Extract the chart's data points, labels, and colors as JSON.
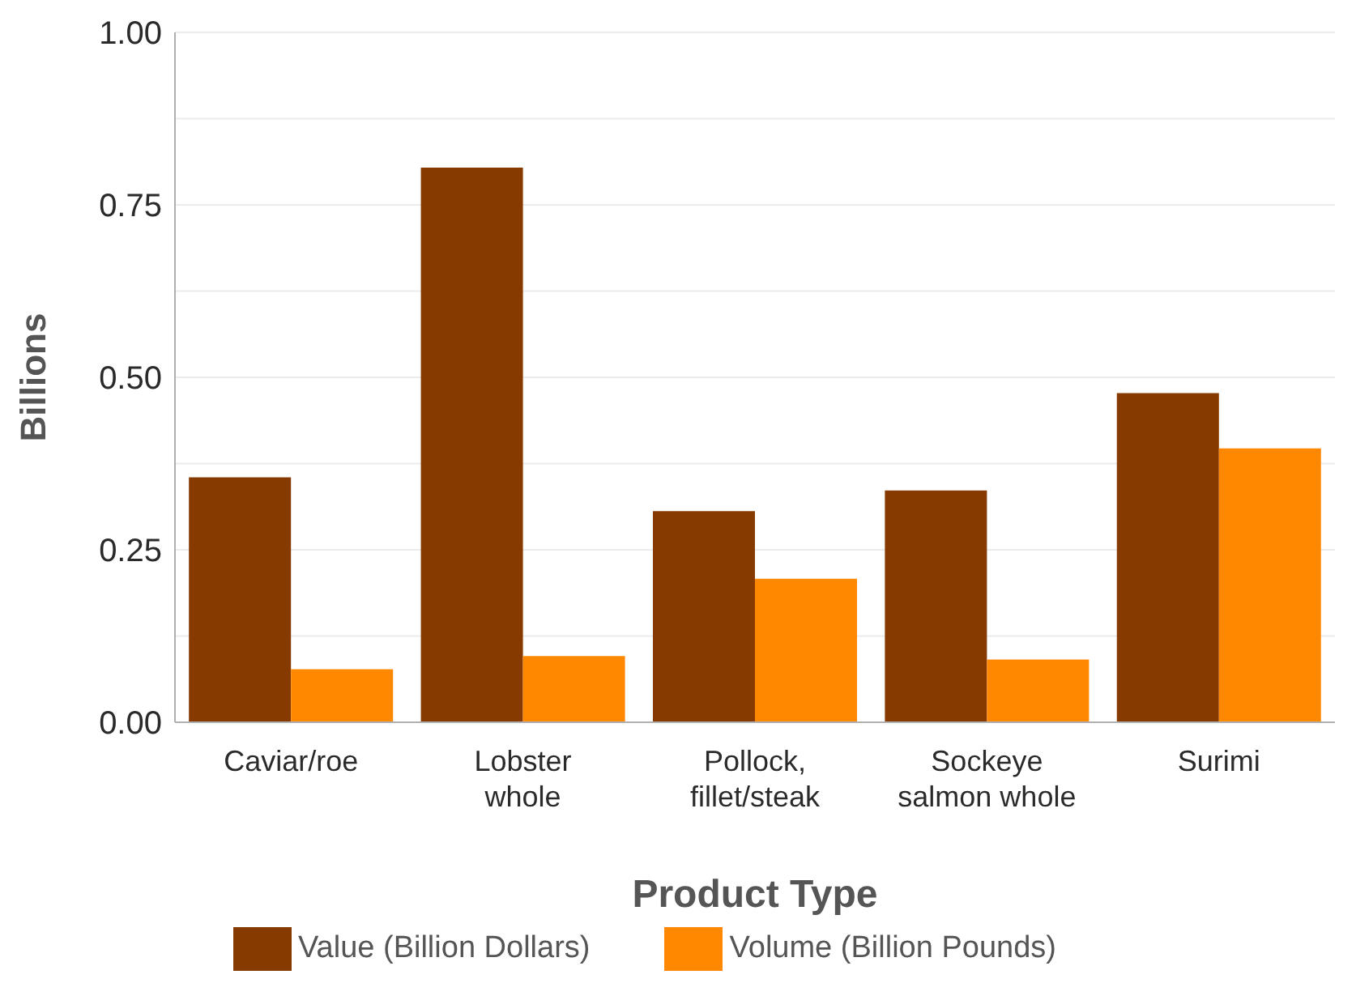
{
  "chart_data": {
    "type": "bar",
    "xlabel": "Product Type",
    "ylabel": "Billions",
    "categories": [
      "Caviar/roe",
      "Lobster whole",
      "Pollock, fillet/steak",
      "Sockeye salmon whole",
      "Surimi"
    ],
    "series": [
      {
        "name": "Value (Billion Dollars)",
        "color": "#873a00",
        "values": [
          0.355,
          0.804,
          0.306,
          0.336,
          0.477
        ]
      },
      {
        "name": "Volume (Billion Pounds)",
        "color": "#ff8800",
        "values": [
          0.077,
          0.096,
          0.208,
          0.091,
          0.397
        ]
      }
    ],
    "ylim": [
      0,
      1
    ],
    "yticks": [
      {
        "value": 0,
        "label": "0.00"
      },
      {
        "value": 0.125,
        "label": null
      },
      0.25,
      {
        "value": 0.375,
        "label": null
      },
      {
        "value": 0.5,
        "label": "0.50"
      },
      {
        "value": 0.625,
        "label": null
      },
      0.75,
      {
        "value": 0.875,
        "label": null
      },
      {
        "value": 1,
        "label": "1.00"
      }
    ],
    "grid": "y",
    "legend": "bottom"
  }
}
